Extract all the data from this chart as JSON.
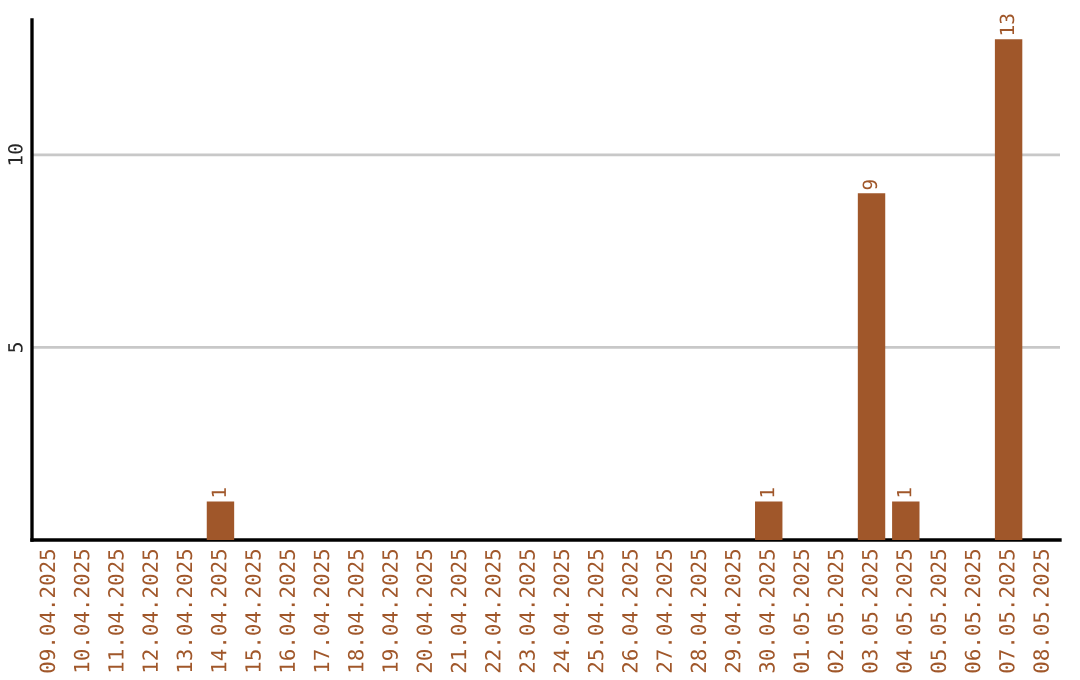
{
  "chart_data": {
    "type": "bar",
    "categories": [
      "09.04.2025",
      "10.04.2025",
      "11.04.2025",
      "12.04.2025",
      "13.04.2025",
      "14.04.2025",
      "15.04.2025",
      "16.04.2025",
      "17.04.2025",
      "18.04.2025",
      "19.04.2025",
      "20.04.2025",
      "21.04.2025",
      "22.04.2025",
      "23.04.2025",
      "24.04.2025",
      "25.04.2025",
      "26.04.2025",
      "27.04.2025",
      "28.04.2025",
      "29.04.2025",
      "30.04.2025",
      "01.05.2025",
      "02.05.2025",
      "03.05.2025",
      "04.05.2025",
      "05.05.2025",
      "06.05.2025",
      "07.05.2025",
      "08.05.2025"
    ],
    "values": [
      0,
      0,
      0,
      0,
      0,
      1,
      0,
      0,
      0,
      0,
      0,
      0,
      0,
      0,
      0,
      0,
      0,
      0,
      0,
      0,
      0,
      1,
      0,
      0,
      9,
      1,
      0,
      0,
      13,
      0
    ],
    "value_labels": [
      null,
      null,
      null,
      null,
      null,
      "1",
      null,
      null,
      null,
      null,
      null,
      null,
      null,
      null,
      null,
      null,
      null,
      null,
      null,
      null,
      null,
      "1",
      null,
      null,
      "9",
      "1",
      null,
      null,
      "13",
      null
    ],
    "color": "#a0572a",
    "ylim": [
      0,
      13.5
    ],
    "yticks": [
      5,
      10
    ],
    "grid": "y"
  }
}
